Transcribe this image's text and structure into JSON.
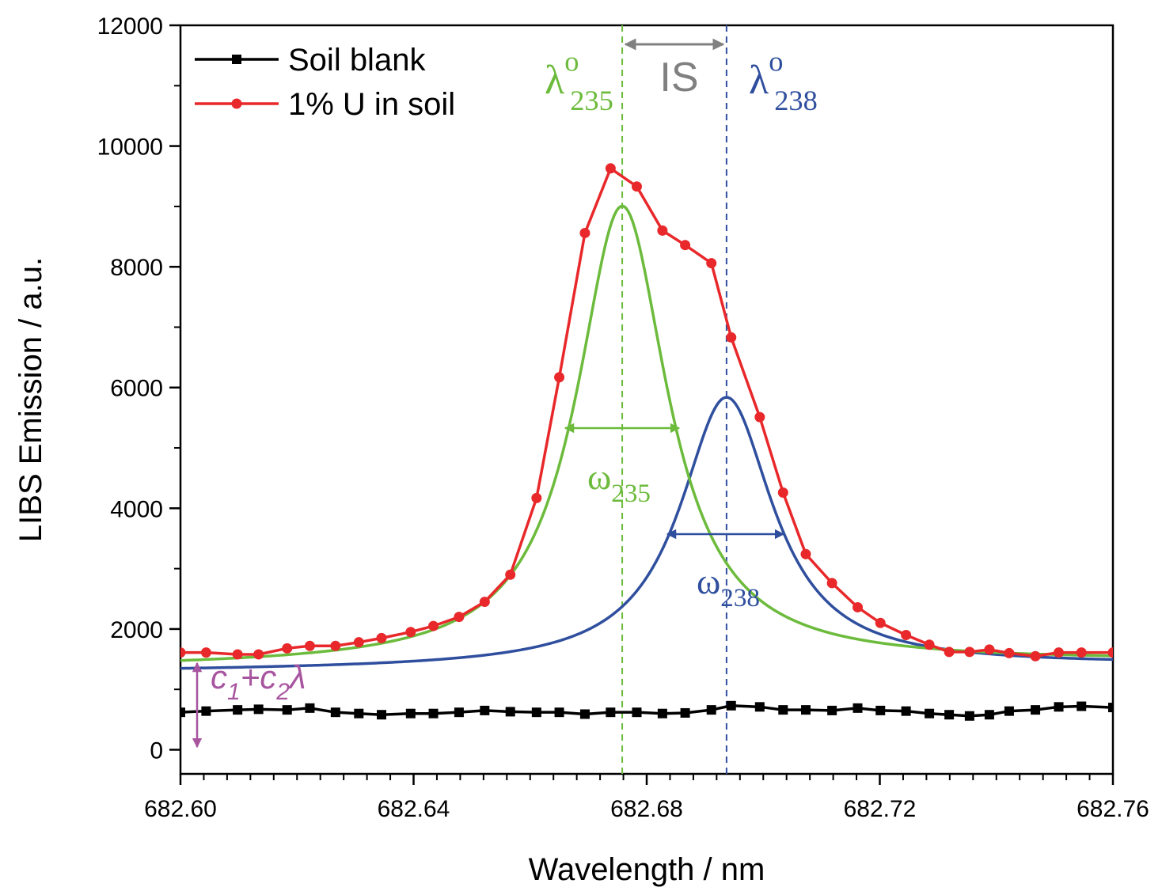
{
  "chart_data": {
    "type": "line",
    "xlabel": "Wavelength / nm",
    "ylabel": "LIBS Emission / a.u.",
    "xlim": [
      682.6,
      682.76
    ],
    "ylim": [
      -400,
      12000
    ],
    "x_ticks": [
      "682.60",
      "682.64",
      "682.68",
      "682.72",
      "682.76"
    ],
    "y_ticks": [
      "0",
      "2000",
      "4000",
      "6000",
      "8000",
      "10000",
      "12000"
    ],
    "legend_position": "top-left",
    "grid": false,
    "series": [
      {
        "name": "Soil blank",
        "color": "#000000",
        "marker": "square",
        "x": [
          682.6,
          682.6044,
          682.6098,
          682.6134,
          682.6183,
          682.6222,
          682.6266,
          682.6306,
          682.6345,
          682.6395,
          682.6434,
          682.6478,
          682.6522,
          682.6566,
          682.6611,
          682.665,
          682.6694,
          682.6738,
          682.6783,
          682.6827,
          682.6866,
          682.6911,
          682.6945,
          682.6994,
          682.7034,
          682.7073,
          682.7118,
          682.7162,
          682.7201,
          682.7245,
          682.7285,
          682.7319,
          682.7354,
          682.7388,
          682.7422,
          682.7467,
          682.7507,
          682.7546,
          682.76
        ],
        "y": [
          620,
          640,
          660,
          670,
          660,
          690,
          620,
          600,
          580,
          600,
          600,
          620,
          650,
          630,
          620,
          620,
          590,
          620,
          620,
          600,
          610,
          660,
          730,
          710,
          660,
          660,
          650,
          690,
          650,
          640,
          600,
          580,
          560,
          580,
          640,
          660,
          710,
          720,
          700
        ]
      },
      {
        "name": "1% U in soil",
        "color": "#e8282a",
        "marker": "circle",
        "x": [
          682.6,
          682.6044,
          682.6098,
          682.6134,
          682.6183,
          682.6222,
          682.6266,
          682.6306,
          682.6345,
          682.6395,
          682.6434,
          682.6478,
          682.6522,
          682.6566,
          682.6611,
          682.665,
          682.6694,
          682.6738,
          682.6783,
          682.6827,
          682.6866,
          682.6911,
          682.6945,
          682.6994,
          682.7034,
          682.7073,
          682.7118,
          682.7162,
          682.7201,
          682.7245,
          682.7285,
          682.7319,
          682.7354,
          682.7388,
          682.7422,
          682.7467,
          682.7507,
          682.7546,
          682.76
        ],
        "y": [
          1610,
          1610,
          1580,
          1580,
          1680,
          1720,
          1720,
          1780,
          1850,
          1950,
          2050,
          2200,
          2450,
          2900,
          4170,
          6170,
          8560,
          9630,
          9330,
          8600,
          8360,
          8060,
          6830,
          5510,
          4260,
          3240,
          2760,
          2360,
          2100,
          1900,
          1740,
          1620,
          1620,
          1660,
          1600,
          1550,
          1610,
          1610,
          1610
        ]
      },
      {
        "name": "",
        "color": "#6cbb3c",
        "marker": "none",
        "peak_center": 682.6758,
        "peak_height": 7600,
        "fwhm": 0.019,
        "baseline_intercept": 1360,
        "baseline_slope": 100
      },
      {
        "name": "",
        "color": "#2f4f9e",
        "marker": "none",
        "peak_center": 682.6937,
        "peak_height": 4480,
        "fwhm": 0.0195,
        "baseline_intercept": 1300,
        "baseline_slope": 100
      }
    ],
    "annotations": {
      "lambda_235": {
        "base": "λ",
        "sup": "o",
        "sub": "235",
        "color": "#6cbb3c"
      },
      "lambda_238": {
        "base": "λ",
        "sup": "o",
        "sub": "238",
        "color": "#2f4f9e"
      },
      "isotope_shift": {
        "label": "IS",
        "color": "#808080"
      },
      "omega_235": {
        "base": "ω",
        "sub": "235",
        "color": "#6cbb3c"
      },
      "omega_238": {
        "base": "ω",
        "sub": "238",
        "color": "#2f4f9e"
      },
      "baseline": {
        "c1": "c",
        "s1": "1",
        "plus": "+c",
        "s2": "2",
        "lam": "λ",
        "color": "#a855a0"
      }
    }
  }
}
